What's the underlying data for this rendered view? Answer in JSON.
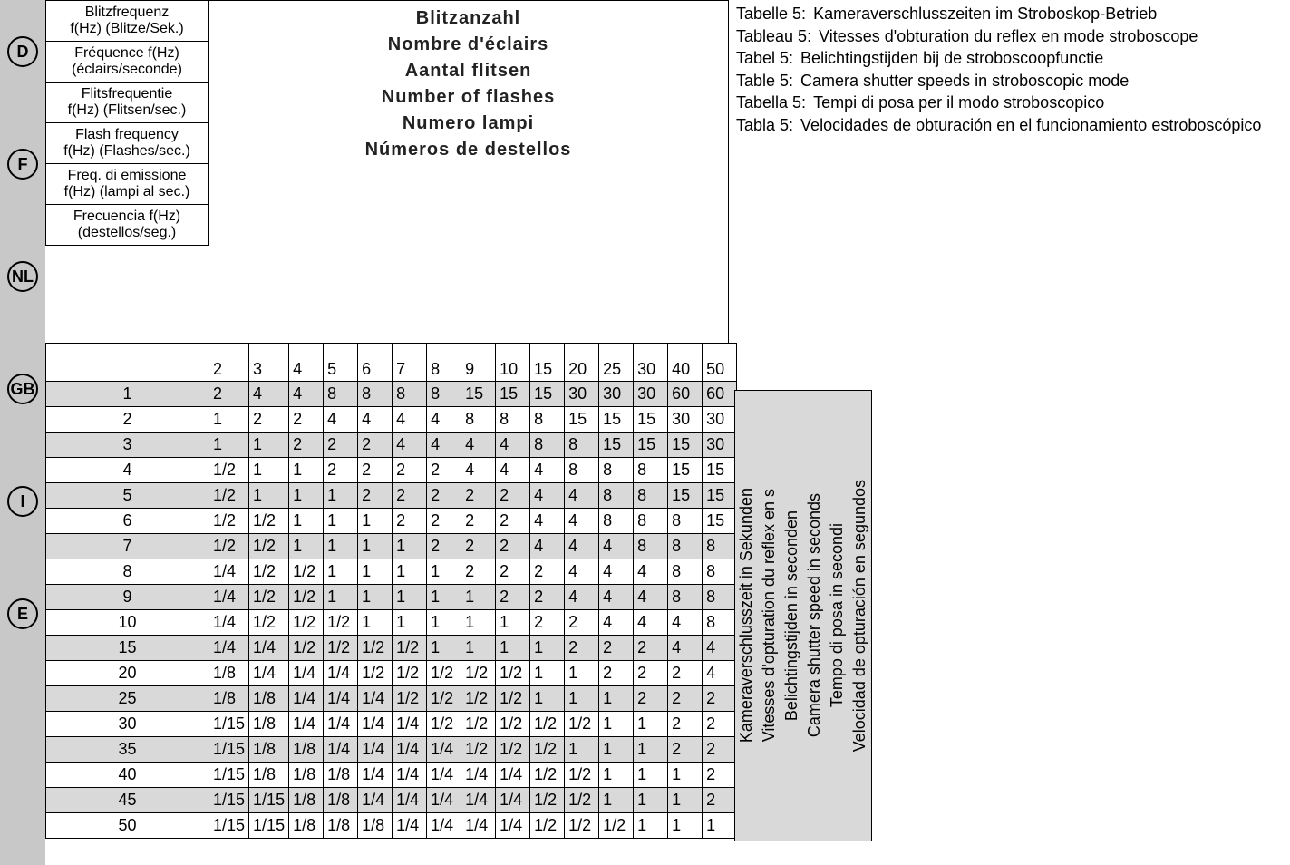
{
  "lang_badges": [
    "D",
    "F",
    "NL",
    "GB",
    "I",
    "E"
  ],
  "header_left": [
    {
      "title": "Blitzfrequenz",
      "sub": "f(Hz) (Blitze/Sek.)"
    },
    {
      "title": "Fréquence f(Hz)",
      "sub": "(éclairs/seconde)"
    },
    {
      "title": "Flitsfrequentie",
      "sub": "f(Hz) (Flitsen/sec.)"
    },
    {
      "title": "Flash frequency",
      "sub": "f(Hz) (Flashes/sec.)"
    },
    {
      "title": "Freq. di emissione",
      "sub": "f(Hz) (lampi al sec.)"
    },
    {
      "title": "Frecuencia f(Hz)",
      "sub": "(destellos/seg.)"
    }
  ],
  "center_headers": [
    "Blitzanzahl",
    "Nombre d'éclairs",
    "Aantal flitsen",
    "Number of flashes",
    "Numero lampi",
    "Números de destellos"
  ],
  "right_caption": [
    {
      "label": "Tabelle 5:",
      "text": "Kameraverschlusszeiten im Stroboskop-Betrieb"
    },
    {
      "label": "Tableau 5:",
      "text": "Vitesses d'obturation du reflex en mode stroboscope"
    },
    {
      "label": "Tabel 5:",
      "text": "Belichtingstijden bij de stroboscoopfunctie"
    },
    {
      "label": "Table 5:",
      "text": "Camera shutter speeds in stroboscopic mode"
    },
    {
      "label": "Tabella 5:",
      "text": "Tempi di posa per il modo stroboscopico"
    },
    {
      "label": "Tabla 5:",
      "text": "Velocidades de obturación en el funcionamiento estroboscópico"
    }
  ],
  "columns": [
    "2",
    "3",
    "4",
    "5",
    "6",
    "7",
    "8",
    "9",
    "10",
    "15",
    "20",
    "25",
    "30",
    "40",
    "50"
  ],
  "rows": [
    {
      "f": "1",
      "v": [
        "2",
        "4",
        "4",
        "8",
        "8",
        "8",
        "8",
        "15",
        "15",
        "15",
        "30",
        "30",
        "30",
        "60",
        "60"
      ]
    },
    {
      "f": "2",
      "v": [
        "1",
        "2",
        "2",
        "4",
        "4",
        "4",
        "4",
        "8",
        "8",
        "8",
        "15",
        "15",
        "15",
        "30",
        "30"
      ]
    },
    {
      "f": "3",
      "v": [
        "1",
        "1",
        "2",
        "2",
        "2",
        "4",
        "4",
        "4",
        "4",
        "8",
        "8",
        "15",
        "15",
        "15",
        "30"
      ]
    },
    {
      "f": "4",
      "v": [
        "1/2",
        "1",
        "1",
        "2",
        "2",
        "2",
        "2",
        "4",
        "4",
        "4",
        "8",
        "8",
        "8",
        "15",
        "15"
      ]
    },
    {
      "f": "5",
      "v": [
        "1/2",
        "1",
        "1",
        "1",
        "2",
        "2",
        "2",
        "2",
        "2",
        "4",
        "4",
        "8",
        "8",
        "15",
        "15"
      ]
    },
    {
      "f": "6",
      "v": [
        "1/2",
        "1/2",
        "1",
        "1",
        "1",
        "2",
        "2",
        "2",
        "2",
        "4",
        "4",
        "8",
        "8",
        "8",
        "15"
      ]
    },
    {
      "f": "7",
      "v": [
        "1/2",
        "1/2",
        "1",
        "1",
        "1",
        "1",
        "2",
        "2",
        "2",
        "4",
        "4",
        "4",
        "8",
        "8",
        "8"
      ]
    },
    {
      "f": "8",
      "v": [
        "1/4",
        "1/2",
        "1/2",
        "1",
        "1",
        "1",
        "1",
        "2",
        "2",
        "2",
        "4",
        "4",
        "4",
        "8",
        "8"
      ]
    },
    {
      "f": "9",
      "v": [
        "1/4",
        "1/2",
        "1/2",
        "1",
        "1",
        "1",
        "1",
        "1",
        "2",
        "2",
        "4",
        "4",
        "4",
        "8",
        "8"
      ]
    },
    {
      "f": "10",
      "v": [
        "1/4",
        "1/2",
        "1/2",
        "1/2",
        "1",
        "1",
        "1",
        "1",
        "1",
        "2",
        "2",
        "4",
        "4",
        "4",
        "8"
      ]
    },
    {
      "f": "15",
      "v": [
        "1/4",
        "1/4",
        "1/2",
        "1/2",
        "1/2",
        "1/2",
        "1",
        "1",
        "1",
        "1",
        "2",
        "2",
        "2",
        "4",
        "4"
      ]
    },
    {
      "f": "20",
      "v": [
        "1/8",
        "1/4",
        "1/4",
        "1/4",
        "1/2",
        "1/2",
        "1/2",
        "1/2",
        "1/2",
        "1",
        "1",
        "2",
        "2",
        "2",
        "4"
      ]
    },
    {
      "f": "25",
      "v": [
        "1/8",
        "1/8",
        "1/4",
        "1/4",
        "1/4",
        "1/2",
        "1/2",
        "1/2",
        "1/2",
        "1",
        "1",
        "1",
        "2",
        "2",
        "2"
      ]
    },
    {
      "f": "30",
      "v": [
        "1/15",
        "1/8",
        "1/4",
        "1/4",
        "1/4",
        "1/4",
        "1/2",
        "1/2",
        "1/2",
        "1/2",
        "1/2",
        "1",
        "1",
        "2",
        "2"
      ]
    },
    {
      "f": "35",
      "v": [
        "1/15",
        "1/8",
        "1/8",
        "1/4",
        "1/4",
        "1/4",
        "1/4",
        "1/2",
        "1/2",
        "1/2",
        "1",
        "1",
        "1",
        "2",
        "2"
      ]
    },
    {
      "f": "40",
      "v": [
        "1/15",
        "1/8",
        "1/8",
        "1/8",
        "1/4",
        "1/4",
        "1/4",
        "1/4",
        "1/4",
        "1/2",
        "1/2",
        "1",
        "1",
        "1",
        "2"
      ]
    },
    {
      "f": "45",
      "v": [
        "1/15",
        "1/15",
        "1/8",
        "1/8",
        "1/4",
        "1/4",
        "1/4",
        "1/4",
        "1/4",
        "1/2",
        "1/2",
        "1",
        "1",
        "1",
        "2"
      ]
    },
    {
      "f": "50",
      "v": [
        "1/15",
        "1/15",
        "1/8",
        "1/8",
        "1/8",
        "1/4",
        "1/4",
        "1/4",
        "1/4",
        "1/2",
        "1/2",
        "1/2",
        "1",
        "1",
        "1"
      ]
    }
  ],
  "axis_labels": [
    "Kameraverschlusszeit in Sekunden",
    "Vitesses d'opturation du reflex en s",
    "Belichtingstijden in seconden",
    "Camera shutter speed in seconds",
    "Tempo di posa in secondi",
    "Velocidad de opturación en segundos"
  ],
  "colors": {
    "badge_bg": "#c8c8c8",
    "stripe": "#d9d9d9",
    "text": "#000000",
    "border": "#000000"
  }
}
